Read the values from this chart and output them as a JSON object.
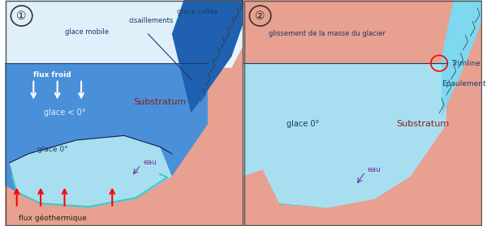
{
  "fig_width": 6.0,
  "fig_height": 2.79,
  "dpi": 100,
  "bg_color": "#ffffff",
  "substratum_color": "#e8a090",
  "ice_cold_color": "#4a90d9",
  "ice_temperate_color": "#a8dff0",
  "ice_stuck_color": "#5a9fd4",
  "glacier_top_color": "#cce8f8",
  "teal_water": "#40c8c0",
  "panel1_title": "①",
  "panel2_title": "②",
  "label_glace_mobile": "glace mobile",
  "label_cisaillements": "cisaillements",
  "label_glace_collee": "glace collée",
  "label_flux_froid": "flux froid",
  "label_glace_lt0": "glace < 0°",
  "label_substratum1": "Substratum",
  "label_glace_0_1": "glace 0°",
  "label_eau1": "eau",
  "label_flux_geo": "flux géothermique",
  "label_glissement": "glissement de la masse du glacier",
  "label_trimline": "Trimline",
  "label_epaulement": "Epaulement",
  "label_substratum2": "Substratum",
  "label_glace_0_2": "glace 0°",
  "label_eau2": "eau"
}
